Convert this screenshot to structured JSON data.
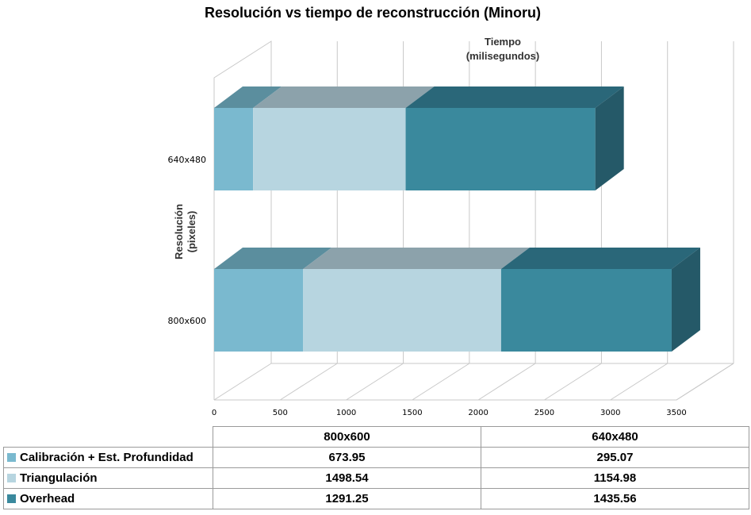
{
  "chart_data": {
    "type": "bar",
    "orientation": "horizontal",
    "stacked": true,
    "style": "3d",
    "title": "Resolución vs tiempo de reconstrucción (Minoru)",
    "xlabel": "Tiempo (milisegundos)",
    "ylabel": "Resolución (pixeles)",
    "categories": [
      "800x600",
      "640x480"
    ],
    "xlim": [
      0,
      3500
    ],
    "x_ticks": [
      "0",
      "500",
      "1000",
      "1500",
      "2000",
      "2500",
      "3000",
      "3500"
    ],
    "grid": true,
    "series": [
      {
        "name": "Calibración + Est. Profundidad",
        "values": [
          673.95,
          295.07
        ],
        "color": "#7ab9cf",
        "top_color": "#5b8e9e",
        "value_labels": [
          "673.95",
          "295.07"
        ]
      },
      {
        "name": "Triangulación",
        "values": [
          1498.54,
          1154.98
        ],
        "color": "#b7d5e0",
        "top_color": "#8ca2ab",
        "value_labels": [
          "1498.54",
          "1154.98"
        ]
      },
      {
        "name": "Overhead",
        "values": [
          1291.25,
          1435.56
        ],
        "color": "#3a899d",
        "top_color": "#2a6779",
        "side_color": "#255968",
        "value_labels": [
          "1291.25",
          "1435.56"
        ]
      }
    ],
    "legend_placement": "data table below chart"
  }
}
